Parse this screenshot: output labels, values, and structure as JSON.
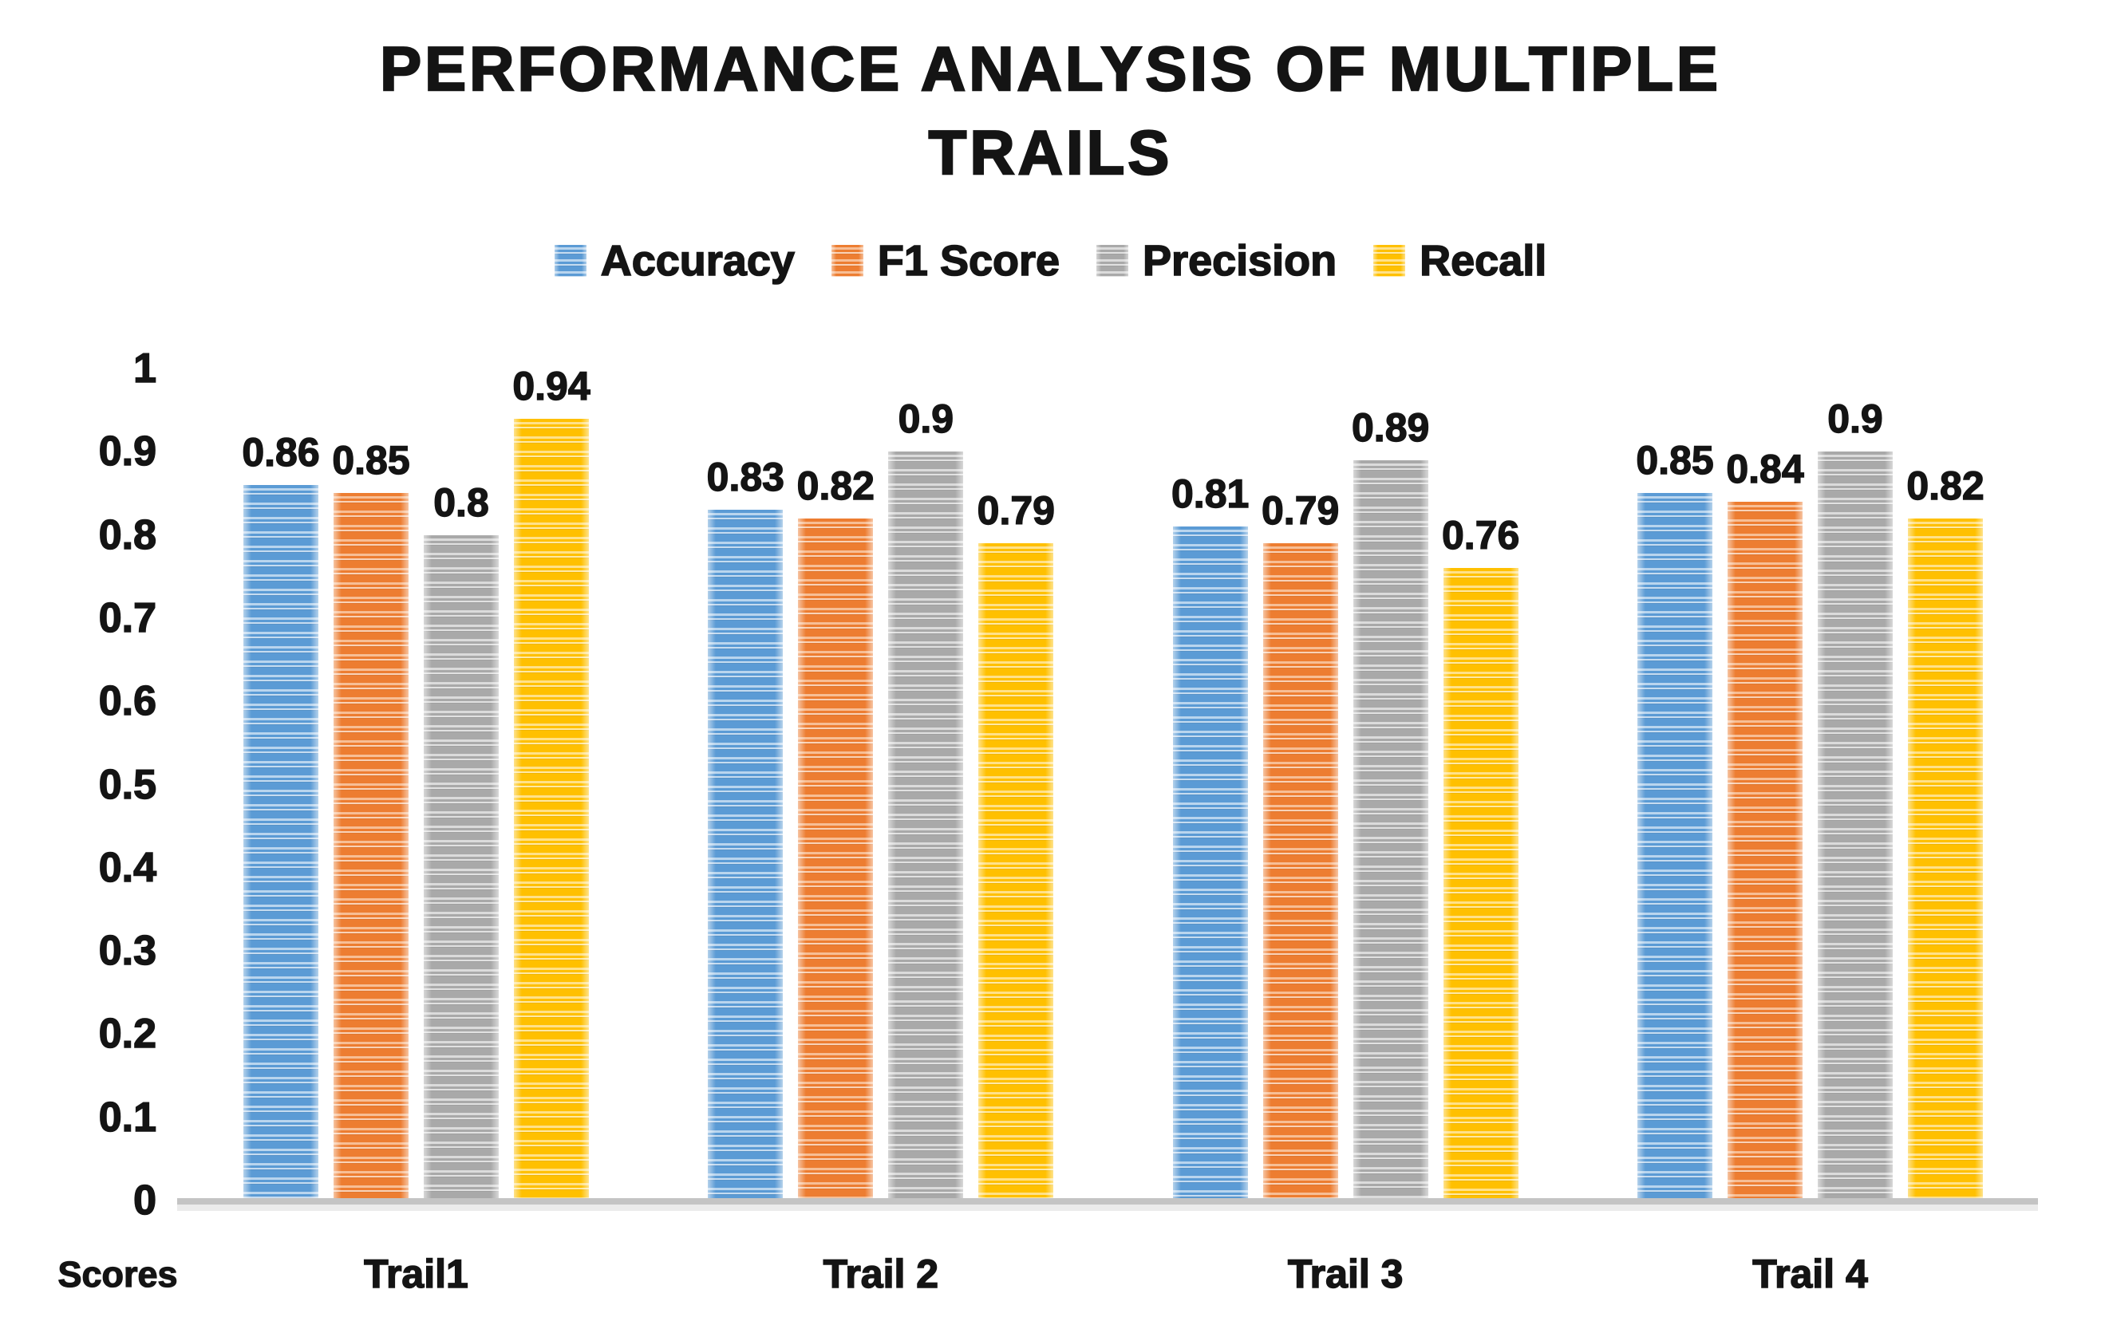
{
  "title": {
    "line1": "PERFORMANCE ANALYSIS OF MULTIPLE",
    "line2": "TRAILS"
  },
  "y_axis_caption": "Scores",
  "chart_data": {
    "type": "bar",
    "title": "PERFORMANCE ANALYSIS OF MULTIPLE TRAILS",
    "categories": [
      "Trail1",
      "Trail 2",
      "Trail 3",
      "Trail 4"
    ],
    "series": [
      {
        "name": "Accuracy",
        "color": "#5B9BD5",
        "color_light": "#B9D5EE",
        "values": [
          0.86,
          0.83,
          0.81,
          0.85
        ]
      },
      {
        "name": "F1 Score",
        "color": "#ED7D31",
        "color_light": "#F7BE95",
        "values": [
          0.85,
          0.82,
          0.79,
          0.84
        ]
      },
      {
        "name": "Precision",
        "color": "#A9A9A9",
        "color_light": "#DBDBDB",
        "values": [
          0.8,
          0.9,
          0.89,
          0.9
        ]
      },
      {
        "name": "Recall",
        "color": "#FFC000",
        "color_light": "#FFE189",
        "values": [
          0.94,
          0.79,
          0.76,
          0.82
        ]
      }
    ],
    "xlabel": "",
    "ylabel": "Scores",
    "ylim": [
      0,
      1
    ],
    "yticks": [
      1,
      0.9,
      0.8,
      0.7,
      0.6,
      0.5,
      0.4,
      0.3,
      0.2,
      0.1,
      0
    ],
    "legend_position": "top",
    "grid": false,
    "value_labels": true
  }
}
